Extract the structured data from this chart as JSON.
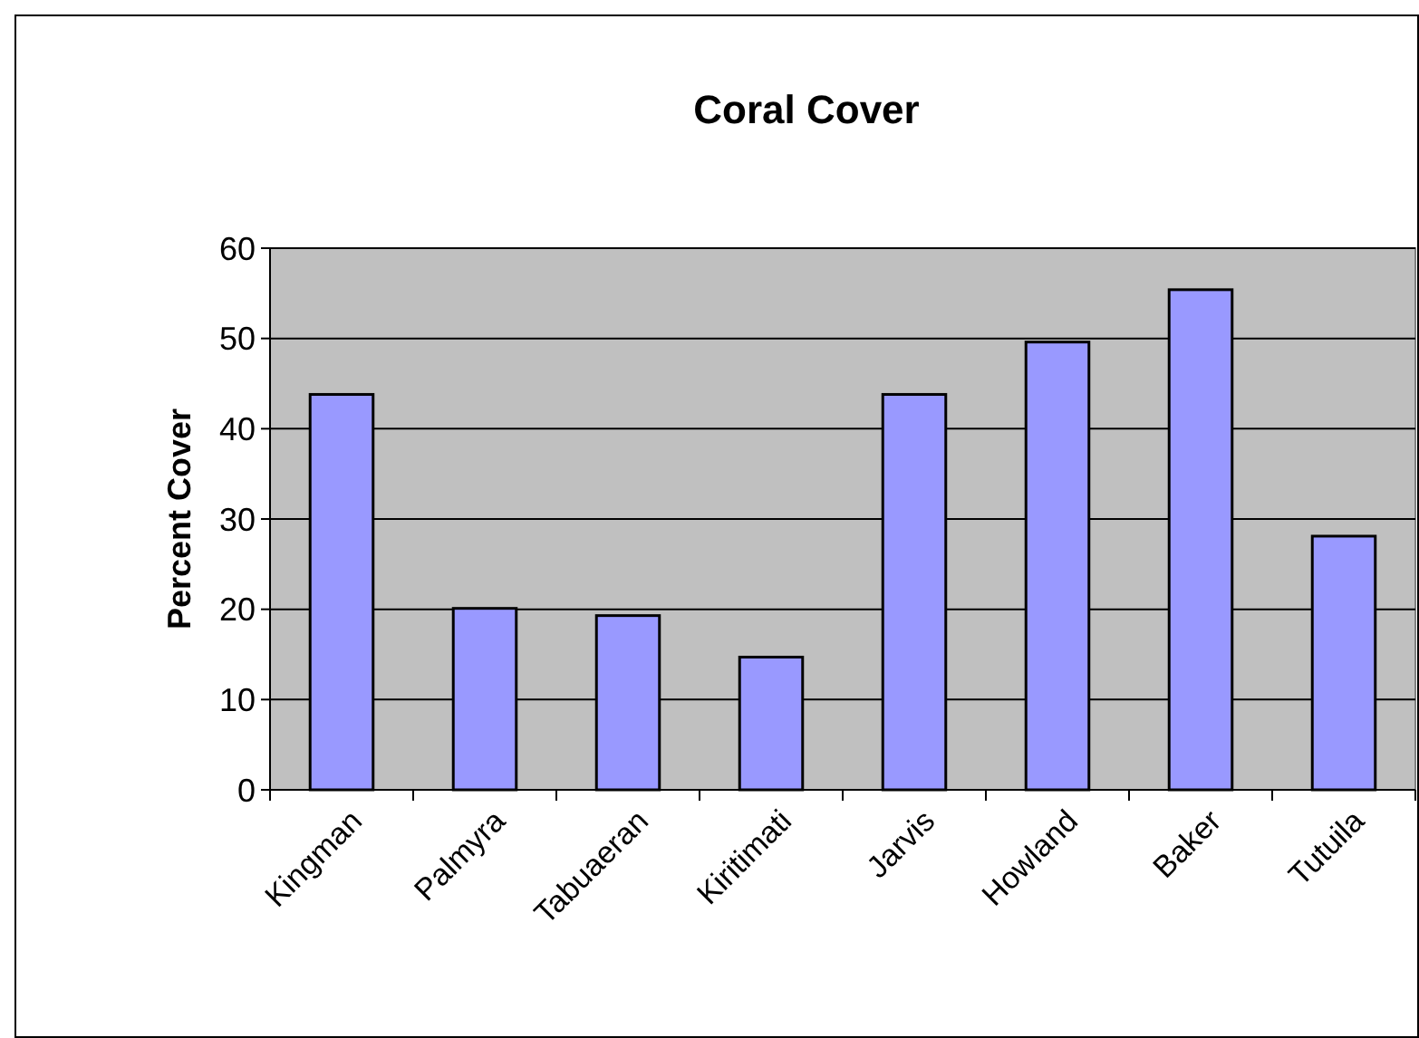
{
  "chart_data": {
    "type": "bar",
    "title": "Coral Cover",
    "ylabel": "Percent Cover",
    "categories": [
      "Kingman",
      "Palmyra",
      "Tabuaeran",
      "Kiritimati",
      "Jarvis",
      "Howland",
      "Baker",
      "Tutuila"
    ],
    "values": [
      43.8,
      20.1,
      19.3,
      14.7,
      43.8,
      49.6,
      55.4,
      28.1
    ],
    "color": "#9999ff",
    "ylim": [
      0,
      60
    ],
    "yticks": [
      0,
      10,
      20,
      30,
      40,
      50,
      60
    ],
    "grid": "y"
  }
}
